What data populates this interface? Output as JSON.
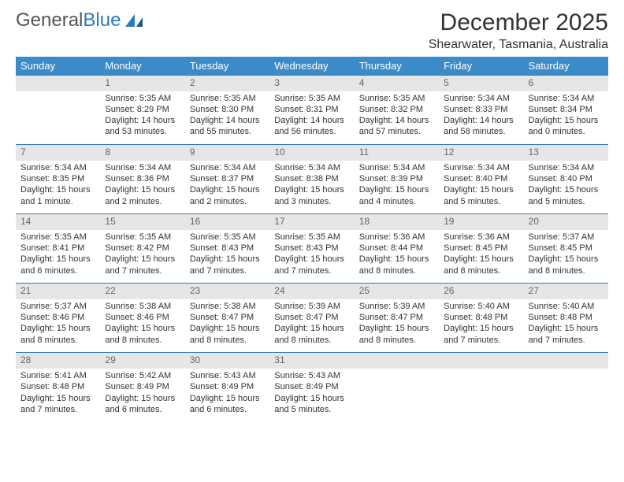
{
  "logo": {
    "text1": "General",
    "text2": "Blue"
  },
  "title": "December 2025",
  "location": "Shearwater, Tasmania, Australia",
  "colors": {
    "header_bg": "#3b8bc9",
    "header_text": "#ffffff",
    "daynum_bg": "#e6e6e6",
    "daynum_text": "#666666",
    "border": "#2b7bbf",
    "body_text": "#333333"
  },
  "day_names": [
    "Sunday",
    "Monday",
    "Tuesday",
    "Wednesday",
    "Thursday",
    "Friday",
    "Saturday"
  ],
  "weeks": [
    {
      "nums": [
        "",
        "1",
        "2",
        "3",
        "4",
        "5",
        "6"
      ],
      "cells": [
        null,
        {
          "sunrise": "Sunrise: 5:35 AM",
          "sunset": "Sunset: 8:29 PM",
          "daylight": "Daylight: 14 hours and 53 minutes."
        },
        {
          "sunrise": "Sunrise: 5:35 AM",
          "sunset": "Sunset: 8:30 PM",
          "daylight": "Daylight: 14 hours and 55 minutes."
        },
        {
          "sunrise": "Sunrise: 5:35 AM",
          "sunset": "Sunset: 8:31 PM",
          "daylight": "Daylight: 14 hours and 56 minutes."
        },
        {
          "sunrise": "Sunrise: 5:35 AM",
          "sunset": "Sunset: 8:32 PM",
          "daylight": "Daylight: 14 hours and 57 minutes."
        },
        {
          "sunrise": "Sunrise: 5:34 AM",
          "sunset": "Sunset: 8:33 PM",
          "daylight": "Daylight: 14 hours and 58 minutes."
        },
        {
          "sunrise": "Sunrise: 5:34 AM",
          "sunset": "Sunset: 8:34 PM",
          "daylight": "Daylight: 15 hours and 0 minutes."
        }
      ]
    },
    {
      "nums": [
        "7",
        "8",
        "9",
        "10",
        "11",
        "12",
        "13"
      ],
      "cells": [
        {
          "sunrise": "Sunrise: 5:34 AM",
          "sunset": "Sunset: 8:35 PM",
          "daylight": "Daylight: 15 hours and 1 minute."
        },
        {
          "sunrise": "Sunrise: 5:34 AM",
          "sunset": "Sunset: 8:36 PM",
          "daylight": "Daylight: 15 hours and 2 minutes."
        },
        {
          "sunrise": "Sunrise: 5:34 AM",
          "sunset": "Sunset: 8:37 PM",
          "daylight": "Daylight: 15 hours and 2 minutes."
        },
        {
          "sunrise": "Sunrise: 5:34 AM",
          "sunset": "Sunset: 8:38 PM",
          "daylight": "Daylight: 15 hours and 3 minutes."
        },
        {
          "sunrise": "Sunrise: 5:34 AM",
          "sunset": "Sunset: 8:39 PM",
          "daylight": "Daylight: 15 hours and 4 minutes."
        },
        {
          "sunrise": "Sunrise: 5:34 AM",
          "sunset": "Sunset: 8:40 PM",
          "daylight": "Daylight: 15 hours and 5 minutes."
        },
        {
          "sunrise": "Sunrise: 5:34 AM",
          "sunset": "Sunset: 8:40 PM",
          "daylight": "Daylight: 15 hours and 5 minutes."
        }
      ]
    },
    {
      "nums": [
        "14",
        "15",
        "16",
        "17",
        "18",
        "19",
        "20"
      ],
      "cells": [
        {
          "sunrise": "Sunrise: 5:35 AM",
          "sunset": "Sunset: 8:41 PM",
          "daylight": "Daylight: 15 hours and 6 minutes."
        },
        {
          "sunrise": "Sunrise: 5:35 AM",
          "sunset": "Sunset: 8:42 PM",
          "daylight": "Daylight: 15 hours and 7 minutes."
        },
        {
          "sunrise": "Sunrise: 5:35 AM",
          "sunset": "Sunset: 8:43 PM",
          "daylight": "Daylight: 15 hours and 7 minutes."
        },
        {
          "sunrise": "Sunrise: 5:35 AM",
          "sunset": "Sunset: 8:43 PM",
          "daylight": "Daylight: 15 hours and 7 minutes."
        },
        {
          "sunrise": "Sunrise: 5:36 AM",
          "sunset": "Sunset: 8:44 PM",
          "daylight": "Daylight: 15 hours and 8 minutes."
        },
        {
          "sunrise": "Sunrise: 5:36 AM",
          "sunset": "Sunset: 8:45 PM",
          "daylight": "Daylight: 15 hours and 8 minutes."
        },
        {
          "sunrise": "Sunrise: 5:37 AM",
          "sunset": "Sunset: 8:45 PM",
          "daylight": "Daylight: 15 hours and 8 minutes."
        }
      ]
    },
    {
      "nums": [
        "21",
        "22",
        "23",
        "24",
        "25",
        "26",
        "27"
      ],
      "cells": [
        {
          "sunrise": "Sunrise: 5:37 AM",
          "sunset": "Sunset: 8:46 PM",
          "daylight": "Daylight: 15 hours and 8 minutes."
        },
        {
          "sunrise": "Sunrise: 5:38 AM",
          "sunset": "Sunset: 8:46 PM",
          "daylight": "Daylight: 15 hours and 8 minutes."
        },
        {
          "sunrise": "Sunrise: 5:38 AM",
          "sunset": "Sunset: 8:47 PM",
          "daylight": "Daylight: 15 hours and 8 minutes."
        },
        {
          "sunrise": "Sunrise: 5:39 AM",
          "sunset": "Sunset: 8:47 PM",
          "daylight": "Daylight: 15 hours and 8 minutes."
        },
        {
          "sunrise": "Sunrise: 5:39 AM",
          "sunset": "Sunset: 8:47 PM",
          "daylight": "Daylight: 15 hours and 8 minutes."
        },
        {
          "sunrise": "Sunrise: 5:40 AM",
          "sunset": "Sunset: 8:48 PM",
          "daylight": "Daylight: 15 hours and 7 minutes."
        },
        {
          "sunrise": "Sunrise: 5:40 AM",
          "sunset": "Sunset: 8:48 PM",
          "daylight": "Daylight: 15 hours and 7 minutes."
        }
      ]
    },
    {
      "nums": [
        "28",
        "29",
        "30",
        "31",
        "",
        "",
        ""
      ],
      "cells": [
        {
          "sunrise": "Sunrise: 5:41 AM",
          "sunset": "Sunset: 8:48 PM",
          "daylight": "Daylight: 15 hours and 7 minutes."
        },
        {
          "sunrise": "Sunrise: 5:42 AM",
          "sunset": "Sunset: 8:49 PM",
          "daylight": "Daylight: 15 hours and 6 minutes."
        },
        {
          "sunrise": "Sunrise: 5:43 AM",
          "sunset": "Sunset: 8:49 PM",
          "daylight": "Daylight: 15 hours and 6 minutes."
        },
        {
          "sunrise": "Sunrise: 5:43 AM",
          "sunset": "Sunset: 8:49 PM",
          "daylight": "Daylight: 15 hours and 5 minutes."
        },
        null,
        null,
        null
      ]
    }
  ]
}
